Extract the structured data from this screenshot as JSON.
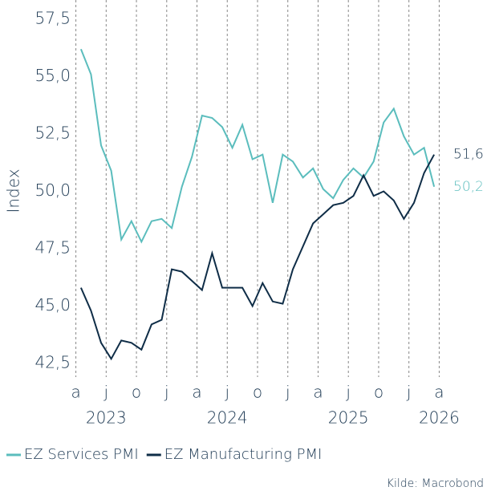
{
  "chart_data": {
    "type": "line",
    "y_label": "Index",
    "source": "Kilde: Macrobond",
    "x": [
      "2023-04",
      "2023-05",
      "2023-06",
      "2023-07",
      "2023-08",
      "2023-09",
      "2023-10",
      "2023-11",
      "2023-12",
      "2024-01",
      "2024-02",
      "2024-03",
      "2024-04",
      "2024-05",
      "2024-06",
      "2024-07",
      "2024-08",
      "2024-09",
      "2024-10",
      "2024-11",
      "2024-12",
      "2025-01",
      "2025-02",
      "2025-03",
      "2025-04",
      "2025-05",
      "2025-06",
      "2025-07",
      "2025-08",
      "2025-09",
      "2025-10",
      "2025-11",
      "2025-12",
      "2026-01",
      "2026-02",
      "2026-03"
    ],
    "series": [
      {
        "name": "EZ Services PMI",
        "color": "#5bbdbd",
        "last_label": "50,2",
        "values": [
          56.2,
          55.1,
          52.0,
          50.9,
          47.9,
          48.7,
          47.8,
          48.7,
          48.8,
          48.4,
          50.2,
          51.5,
          53.3,
          53.2,
          52.8,
          51.9,
          52.9,
          51.4,
          51.6,
          49.5,
          51.6,
          51.3,
          50.6,
          51.0,
          50.1,
          49.7,
          50.5,
          51.0,
          50.6,
          51.3,
          53.0,
          53.6,
          52.4,
          51.6,
          51.9,
          50.2
        ]
      },
      {
        "name": "EZ Manufacturing PMI",
        "color": "#0f2d47",
        "last_label": "51,6",
        "values": [
          45.8,
          44.8,
          43.4,
          42.7,
          43.5,
          43.4,
          43.1,
          44.2,
          44.4,
          46.6,
          46.5,
          46.1,
          45.7,
          47.3,
          45.8,
          45.8,
          45.8,
          45.0,
          46.0,
          45.2,
          45.1,
          46.6,
          47.6,
          48.6,
          49.0,
          49.4,
          49.5,
          49.8,
          50.7,
          49.8,
          50.0,
          49.6,
          48.8,
          49.5,
          50.8,
          51.6
        ]
      }
    ],
    "xlim": [
      "2023-03",
      "2026-05"
    ],
    "xticks": [
      {
        "value": "2023-04",
        "label": "a"
      },
      {
        "value": "2023-07",
        "label": "j"
      },
      {
        "value": "2023-10",
        "label": "o"
      },
      {
        "value": "2024-01",
        "label": "j"
      },
      {
        "value": "2024-04",
        "label": "a"
      },
      {
        "value": "2024-07",
        "label": "j"
      },
      {
        "value": "2024-10",
        "label": "o"
      },
      {
        "value": "2025-01",
        "label": "j"
      },
      {
        "value": "2025-04",
        "label": "a"
      },
      {
        "value": "2025-07",
        "label": "j"
      },
      {
        "value": "2025-10",
        "label": "o"
      },
      {
        "value": "2026-01",
        "label": "j"
      },
      {
        "value": "2026-04",
        "label": "a"
      }
    ],
    "year_labels": [
      {
        "value": "2023-07",
        "label": "2023"
      },
      {
        "value": "2024-07",
        "label": "2024"
      },
      {
        "value": "2025-07",
        "label": "2025"
      },
      {
        "value": "2026-04",
        "label": "2026"
      }
    ],
    "ylim": [
      42.0,
      58.0
    ],
    "yticks": [
      {
        "value": 42.5,
        "label": "42,5"
      },
      {
        "value": 45.0,
        "label": "45,0"
      },
      {
        "value": 47.5,
        "label": "47,5"
      },
      {
        "value": 50.0,
        "label": "50,0"
      },
      {
        "value": 52.5,
        "label": "52,5"
      },
      {
        "value": 55.0,
        "label": "55,0"
      },
      {
        "value": 57.5,
        "label": "57,5"
      }
    ],
    "grid": true
  }
}
